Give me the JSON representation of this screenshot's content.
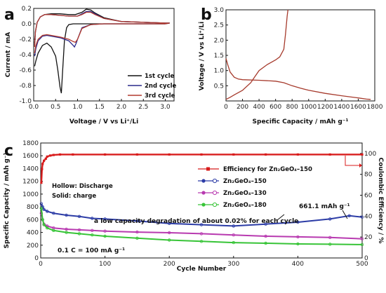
{
  "panels": {
    "a": {
      "label": "a",
      "xlabel": "Voltage / V vs Li⁺/Li",
      "ylabel": "Current / mA",
      "legend": [
        "1st cycle",
        "2nd cycle",
        "3rd cycle"
      ],
      "colors": [
        "#111111",
        "#2a2a8c",
        "#b23a2e"
      ]
    },
    "b": {
      "label": "b",
      "xlabel": "Specific Capacity / mAh g⁻¹",
      "ylabel": "Voltage / V vs Li⁺/Li",
      "color": "#a63a2c"
    },
    "c": {
      "label": "c",
      "xlabel": "Cycle Number",
      "ylabel": "Specific Capacity / mAh g⁻¹",
      "y2label": "Coulombic Efficiency / %",
      "legend": [
        "Efficiency for Zn₂GeO₄–150",
        "Zn₂GeO₄–150",
        "Zn₂GeO₄–130",
        "Zn₂GeO₄–180"
      ],
      "colors": [
        "#d81c1c",
        "#2c3ca6",
        "#b83ab0",
        "#37c437"
      ],
      "note_hollow": "Hollow: Discharge",
      "note_solid": "Solid: charge",
      "annotation": "a low capacity degradation of about 0.02% for each cycle",
      "capacity_label": "661.1 mAh g⁻¹",
      "rate_label": "0.1 C = 100 mA  g⁻¹"
    }
  },
  "chart_data": [
    {
      "panel": "a",
      "type": "line",
      "xlim": [
        0.0,
        3.2
      ],
      "ylim": [
        -1.0,
        0.2
      ],
      "xticks": [
        0.0,
        0.5,
        1.0,
        1.5,
        2.0,
        2.5,
        3.0
      ],
      "yticks": [
        -1.0,
        -0.8,
        -0.6,
        -0.4,
        -0.2,
        0.0,
        0.2
      ],
      "series": [
        {
          "name": "1st cycle",
          "x": [
            0.02,
            0.05,
            0.1,
            0.2,
            0.3,
            0.4,
            0.5,
            0.55,
            0.6,
            0.63,
            0.66,
            0.7,
            0.75,
            0.8,
            0.9,
            1.0,
            1.2,
            1.5,
            2.0,
            2.5,
            3.0,
            3.1,
            3.0,
            2.5,
            2.0,
            1.6,
            1.4,
            1.3,
            1.2,
            1.1,
            0.95,
            0.8,
            0.6,
            0.4,
            0.25,
            0.15,
            0.08,
            0.04,
            0.02
          ],
          "y": [
            -0.55,
            -0.48,
            -0.38,
            -0.28,
            -0.25,
            -0.3,
            -0.42,
            -0.6,
            -0.82,
            -0.9,
            -0.6,
            -0.22,
            -0.05,
            -0.01,
            0.0,
            0.0,
            0.0,
            0.0,
            0.0,
            0.0,
            0.0,
            0.01,
            0.01,
            0.02,
            0.03,
            0.08,
            0.14,
            0.18,
            0.19,
            0.15,
            0.12,
            0.12,
            0.13,
            0.13,
            0.12,
            0.09,
            0.02,
            -0.1,
            -0.25
          ]
        },
        {
          "name": "2nd cycle",
          "x": [
            0.02,
            0.05,
            0.1,
            0.2,
            0.3,
            0.4,
            0.6,
            0.8,
            0.9,
            0.93,
            0.97,
            1.0,
            1.1,
            1.3,
            1.6,
            2.0,
            2.5,
            3.0,
            3.1,
            3.0,
            2.5,
            2.0,
            1.6,
            1.4,
            1.3,
            1.2,
            1.1,
            1.0,
            0.8,
            0.6,
            0.4,
            0.25,
            0.15,
            0.08,
            0.04,
            0.02
          ],
          "y": [
            -0.42,
            -0.32,
            -0.22,
            -0.16,
            -0.15,
            -0.16,
            -0.18,
            -0.22,
            -0.28,
            -0.3,
            -0.25,
            -0.2,
            -0.05,
            -0.01,
            0.0,
            0.0,
            0.0,
            0.0,
            0.01,
            0.01,
            0.02,
            0.03,
            0.07,
            0.13,
            0.16,
            0.16,
            0.13,
            0.1,
            0.1,
            0.11,
            0.12,
            0.12,
            0.09,
            0.02,
            -0.1,
            -0.28
          ]
        },
        {
          "name": "3rd cycle",
          "x": [
            0.02,
            0.05,
            0.1,
            0.2,
            0.3,
            0.4,
            0.6,
            0.8,
            0.9,
            0.95,
            1.0,
            1.1,
            1.3,
            1.6,
            2.0,
            2.5,
            3.0,
            3.1,
            3.0,
            2.5,
            2.0,
            1.6,
            1.4,
            1.3,
            1.2,
            1.1,
            1.0,
            0.8,
            0.6,
            0.4,
            0.25,
            0.15,
            0.08,
            0.04,
            0.02
          ],
          "y": [
            -0.38,
            -0.28,
            -0.2,
            -0.15,
            -0.14,
            -0.15,
            -0.17,
            -0.2,
            -0.23,
            -0.24,
            -0.2,
            -0.06,
            -0.01,
            0.0,
            0.0,
            0.0,
            0.0,
            0.01,
            0.01,
            0.02,
            0.03,
            0.07,
            0.12,
            0.15,
            0.15,
            0.12,
            0.1,
            0.1,
            0.11,
            0.12,
            0.12,
            0.09,
            0.02,
            -0.1,
            -0.3
          ]
        }
      ]
    },
    {
      "panel": "b",
      "type": "line",
      "xlim": [
        0,
        1800
      ],
      "ylim": [
        0.0,
        3.0
      ],
      "xticks": [
        0,
        200,
        400,
        600,
        800,
        1000,
        1200,
        1400,
        1600,
        1800
      ],
      "yticks": [
        0.5,
        1.0,
        1.5,
        2.0,
        2.5,
        3.0
      ],
      "series": [
        {
          "name": "discharge",
          "x": [
            0,
            20,
            50,
            100,
            150,
            200,
            400,
            600,
            700,
            800,
            900,
            1000,
            1200,
            1400,
            1600,
            1700,
            1750
          ],
          "y": [
            1.4,
            1.2,
            0.95,
            0.78,
            0.72,
            0.7,
            0.68,
            0.65,
            0.6,
            0.5,
            0.42,
            0.35,
            0.25,
            0.17,
            0.1,
            0.06,
            0.05
          ]
        },
        {
          "name": "charge",
          "x": [
            0,
            50,
            100,
            200,
            300,
            350,
            400,
            500,
            600,
            650,
            700,
            720,
            740,
            750
          ],
          "y": [
            0.05,
            0.12,
            0.2,
            0.35,
            0.6,
            0.8,
            1.0,
            1.2,
            1.35,
            1.45,
            1.7,
            2.2,
            2.8,
            3.0
          ]
        }
      ]
    },
    {
      "panel": "c",
      "type": "scatter",
      "xlim": [
        0,
        500
      ],
      "ylim": [
        0,
        1800
      ],
      "y2lim": [
        0,
        110
      ],
      "xticks": [
        0,
        100,
        200,
        300,
        400,
        500
      ],
      "yticks": [
        0,
        200,
        400,
        600,
        800,
        1000,
        1200,
        1400,
        1600,
        1800
      ],
      "y2ticks": [
        0,
        20,
        40,
        60,
        80,
        100
      ],
      "series": [
        {
          "name": "Efficiency for Zn₂GeO₄–150",
          "axis": "right",
          "x": [
            1,
            2,
            3,
            5,
            8,
            10,
            15,
            20,
            30,
            50,
            100,
            150,
            200,
            250,
            300,
            350,
            400,
            450,
            500
          ],
          "y": [
            72,
            85,
            90,
            93,
            95,
            97,
            98,
            98.5,
            99,
            99,
            99,
            99,
            99,
            99,
            99,
            99,
            99,
            99,
            99
          ]
        },
        {
          "name": "Zn₂GeO₄–150",
          "axis": "left",
          "x": [
            1,
            3,
            5,
            10,
            20,
            40,
            60,
            80,
            100,
            150,
            200,
            250,
            300,
            350,
            400,
            450,
            480,
            500
          ],
          "y": [
            850,
            800,
            760,
            730,
            700,
            670,
            650,
            620,
            610,
            580,
            540,
            520,
            500,
            530,
            560,
            610,
            661,
            640
          ]
        },
        {
          "name": "Zn₂GeO₄–130",
          "axis": "left",
          "x": [
            1,
            3,
            5,
            10,
            20,
            40,
            60,
            80,
            100,
            150,
            200,
            250,
            300,
            350,
            400,
            450,
            500
          ],
          "y": [
            700,
            600,
            530,
            500,
            470,
            450,
            440,
            430,
            420,
            405,
            395,
            380,
            360,
            340,
            330,
            320,
            300
          ]
        },
        {
          "name": "Zn₂GeO₄–180",
          "axis": "left",
          "x": [
            1,
            3,
            5,
            10,
            20,
            40,
            60,
            80,
            100,
            150,
            200,
            250,
            300,
            350,
            400,
            450,
            500
          ],
          "y": [
            780,
            600,
            520,
            470,
            430,
            400,
            380,
            360,
            340,
            310,
            280,
            260,
            240,
            230,
            220,
            215,
            210
          ]
        }
      ]
    }
  ]
}
